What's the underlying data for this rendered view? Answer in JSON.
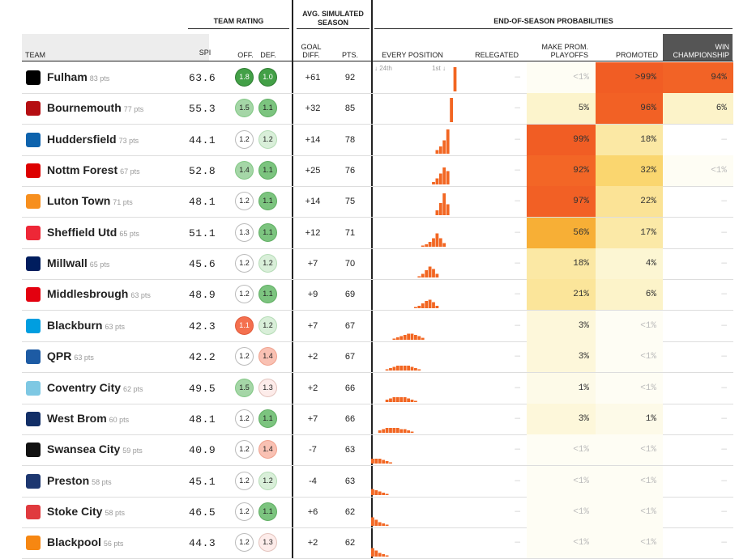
{
  "groups": {
    "team_rating": "TEAM RATING",
    "avg_sim_1": "AVG. SIMULATED",
    "avg_sim_2": "SEASON",
    "end_of_season": "END-OF-SEASON PROBABILITIES"
  },
  "columns": {
    "team": "TEAM",
    "spi": "SPI",
    "off": "OFF.",
    "def": "DEF.",
    "goal_diff_1": "GOAL",
    "goal_diff_2": "DIFF.",
    "pts": "PTS.",
    "every_position": "EVERY POSITION",
    "relegated": "RELEGATED",
    "make_prom_1": "MAKE PROM.",
    "make_prom_2": "PLAYOFFS",
    "promoted": "PROMOTED",
    "win_1": "WIN",
    "win_2": "CHAMPIONSHIP"
  },
  "axis": {
    "left": "24th",
    "right": "1st"
  },
  "colors": {
    "accent": "#f26622",
    "off_good": "#4caf50",
    "def_bad": "#f4704f"
  },
  "teams": [
    {
      "name": "Fulham",
      "pts_label": "83 pts",
      "spi": "63.6",
      "off": "1.8",
      "def": "1.0",
      "gd": "+61",
      "pts": "92",
      "relegated": "—",
      "playoffs": "<1%",
      "promoted": ">99%",
      "win": "94%",
      "crest": "#000000",
      "dist": [
        [
          23,
          1
        ]
      ]
    },
    {
      "name": "Bournemouth",
      "pts_label": "77 pts",
      "spi": "55.3",
      "off": "1.5",
      "def": "1.1",
      "gd": "+32",
      "pts": "85",
      "relegated": "—",
      "playoffs": "5%",
      "promoted": "96%",
      "win": "6%",
      "crest": "#b50e12",
      "dist": [
        [
          22,
          1
        ]
      ]
    },
    {
      "name": "Huddersfield",
      "pts_label": "73 pts",
      "spi": "44.1",
      "off": "1.2",
      "def": "1.2",
      "gd": "+14",
      "pts": "78",
      "relegated": "—",
      "playoffs": "99%",
      "promoted": "18%",
      "win": "—",
      "crest": "#0e63ad",
      "dist": [
        [
          18,
          0.15
        ],
        [
          19,
          0.3
        ],
        [
          20,
          0.55
        ],
        [
          21,
          1
        ]
      ]
    },
    {
      "name": "Nottm Forest",
      "pts_label": "67 pts",
      "spi": "52.8",
      "off": "1.4",
      "def": "1.1",
      "gd": "+25",
      "pts": "76",
      "relegated": "—",
      "playoffs": "92%",
      "promoted": "32%",
      "win": "<1%",
      "crest": "#dd0000",
      "dist": [
        [
          17,
          0.1
        ],
        [
          18,
          0.25
        ],
        [
          19,
          0.45
        ],
        [
          20,
          0.7
        ],
        [
          21,
          0.55
        ]
      ]
    },
    {
      "name": "Luton Town",
      "pts_label": "71 pts",
      "spi": "48.1",
      "off": "1.2",
      "def": "1.1",
      "gd": "+14",
      "pts": "75",
      "relegated": "—",
      "playoffs": "97%",
      "promoted": "22%",
      "win": "—",
      "crest": "#f78f1e",
      "dist": [
        [
          18,
          0.2
        ],
        [
          19,
          0.5
        ],
        [
          20,
          0.9
        ],
        [
          21,
          0.45
        ]
      ]
    },
    {
      "name": "Sheffield Utd",
      "pts_label": "65 pts",
      "spi": "51.1",
      "off": "1.3",
      "def": "1.1",
      "gd": "+12",
      "pts": "71",
      "relegated": "—",
      "playoffs": "56%",
      "promoted": "17%",
      "win": "—",
      "crest": "#ee2737",
      "dist": [
        [
          14,
          0.05
        ],
        [
          15,
          0.1
        ],
        [
          16,
          0.2
        ],
        [
          17,
          0.35
        ],
        [
          18,
          0.55
        ],
        [
          19,
          0.35
        ],
        [
          20,
          0.15
        ]
      ]
    },
    {
      "name": "Millwall",
      "pts_label": "65 pts",
      "spi": "45.6",
      "off": "1.2",
      "def": "1.2",
      "gd": "+7",
      "pts": "70",
      "relegated": "—",
      "playoffs": "18%",
      "promoted": "4%",
      "win": "—",
      "crest": "#001d5e",
      "dist": [
        [
          13,
          0.05
        ],
        [
          14,
          0.15
        ],
        [
          15,
          0.3
        ],
        [
          16,
          0.45
        ],
        [
          17,
          0.35
        ],
        [
          18,
          0.15
        ]
      ]
    },
    {
      "name": "Middlesbrough",
      "pts_label": "63 pts",
      "spi": "48.9",
      "off": "1.2",
      "def": "1.1",
      "gd": "+9",
      "pts": "69",
      "relegated": "—",
      "playoffs": "21%",
      "promoted": "6%",
      "win": "—",
      "crest": "#e3000f",
      "dist": [
        [
          12,
          0.05
        ],
        [
          13,
          0.1
        ],
        [
          14,
          0.2
        ],
        [
          15,
          0.3
        ],
        [
          16,
          0.35
        ],
        [
          17,
          0.25
        ],
        [
          18,
          0.1
        ]
      ]
    },
    {
      "name": "Blackburn",
      "pts_label": "63 pts",
      "spi": "42.3",
      "off": "1.1",
      "def": "1.2",
      "gd": "+7",
      "pts": "67",
      "relegated": "—",
      "playoffs": "3%",
      "promoted": "<1%",
      "win": "—",
      "crest": "#009ee0",
      "dist": [
        [
          6,
          0.05
        ],
        [
          7,
          0.1
        ],
        [
          8,
          0.15
        ],
        [
          9,
          0.2
        ],
        [
          10,
          0.25
        ],
        [
          11,
          0.25
        ],
        [
          12,
          0.2
        ],
        [
          13,
          0.15
        ],
        [
          14,
          0.08
        ]
      ]
    },
    {
      "name": "QPR",
      "pts_label": "63 pts",
      "spi": "42.2",
      "off": "1.2",
      "def": "1.4",
      "gd": "+2",
      "pts": "67",
      "relegated": "—",
      "playoffs": "3%",
      "promoted": "<1%",
      "win": "—",
      "crest": "#1d5ba4",
      "dist": [
        [
          4,
          0.05
        ],
        [
          5,
          0.1
        ],
        [
          6,
          0.15
        ],
        [
          7,
          0.2
        ],
        [
          8,
          0.2
        ],
        [
          9,
          0.2
        ],
        [
          10,
          0.2
        ],
        [
          11,
          0.15
        ],
        [
          12,
          0.1
        ],
        [
          13,
          0.05
        ]
      ]
    },
    {
      "name": "Coventry City",
      "pts_label": "62 pts",
      "spi": "49.5",
      "off": "1.5",
      "def": "1.3",
      "gd": "+2",
      "pts": "66",
      "relegated": "—",
      "playoffs": "1%",
      "promoted": "<1%",
      "win": "—",
      "crest": "#7ec8e3",
      "dist": [
        [
          4,
          0.1
        ],
        [
          5,
          0.15
        ],
        [
          6,
          0.2
        ],
        [
          7,
          0.2
        ],
        [
          8,
          0.2
        ],
        [
          9,
          0.2
        ],
        [
          10,
          0.15
        ],
        [
          11,
          0.1
        ],
        [
          12,
          0.05
        ]
      ]
    },
    {
      "name": "West Brom",
      "pts_label": "60 pts",
      "spi": "48.1",
      "off": "1.2",
      "def": "1.1",
      "gd": "+7",
      "pts": "66",
      "relegated": "—",
      "playoffs": "3%",
      "promoted": "1%",
      "win": "—",
      "crest": "#122f67",
      "dist": [
        [
          2,
          0.1
        ],
        [
          3,
          0.15
        ],
        [
          4,
          0.2
        ],
        [
          5,
          0.2
        ],
        [
          6,
          0.2
        ],
        [
          7,
          0.2
        ],
        [
          8,
          0.15
        ],
        [
          9,
          0.15
        ],
        [
          10,
          0.1
        ],
        [
          11,
          0.05
        ]
      ]
    },
    {
      "name": "Swansea City",
      "pts_label": "59 pts",
      "spi": "40.9",
      "off": "1.2",
      "def": "1.4",
      "gd": "-7",
      "pts": "63",
      "relegated": "—",
      "playoffs": "<1%",
      "promoted": "<1%",
      "win": "—",
      "crest": "#111111",
      "dist": [
        [
          0,
          0.2
        ],
        [
          1,
          0.2
        ],
        [
          2,
          0.2
        ],
        [
          3,
          0.15
        ],
        [
          4,
          0.1
        ],
        [
          5,
          0.05
        ]
      ]
    },
    {
      "name": "Preston",
      "pts_label": "58 pts",
      "spi": "45.1",
      "off": "1.2",
      "def": "1.2",
      "gd": "-4",
      "pts": "63",
      "relegated": "—",
      "playoffs": "<1%",
      "promoted": "<1%",
      "win": "—",
      "crest": "#1d3770",
      "dist": [
        [
          0,
          0.25
        ],
        [
          1,
          0.2
        ],
        [
          2,
          0.15
        ],
        [
          3,
          0.1
        ],
        [
          4,
          0.05
        ]
      ]
    },
    {
      "name": "Stoke City",
      "pts_label": "58 pts",
      "spi": "46.5",
      "off": "1.2",
      "def": "1.1",
      "gd": "+6",
      "pts": "62",
      "relegated": "—",
      "playoffs": "<1%",
      "promoted": "<1%",
      "win": "—",
      "crest": "#e03a3e",
      "dist": [
        [
          0,
          0.35
        ],
        [
          1,
          0.25
        ],
        [
          2,
          0.15
        ],
        [
          3,
          0.1
        ],
        [
          4,
          0.05
        ]
      ]
    },
    {
      "name": "Blackpool",
      "pts_label": "56 pts",
      "spi": "44.3",
      "off": "1.2",
      "def": "1.3",
      "gd": "+2",
      "pts": "62",
      "relegated": "—",
      "playoffs": "<1%",
      "promoted": "<1%",
      "win": "—",
      "crest": "#f68712",
      "dist": [
        [
          0,
          0.35
        ],
        [
          1,
          0.25
        ],
        [
          2,
          0.15
        ],
        [
          3,
          0.1
        ],
        [
          4,
          0.05
        ]
      ]
    }
  ]
}
